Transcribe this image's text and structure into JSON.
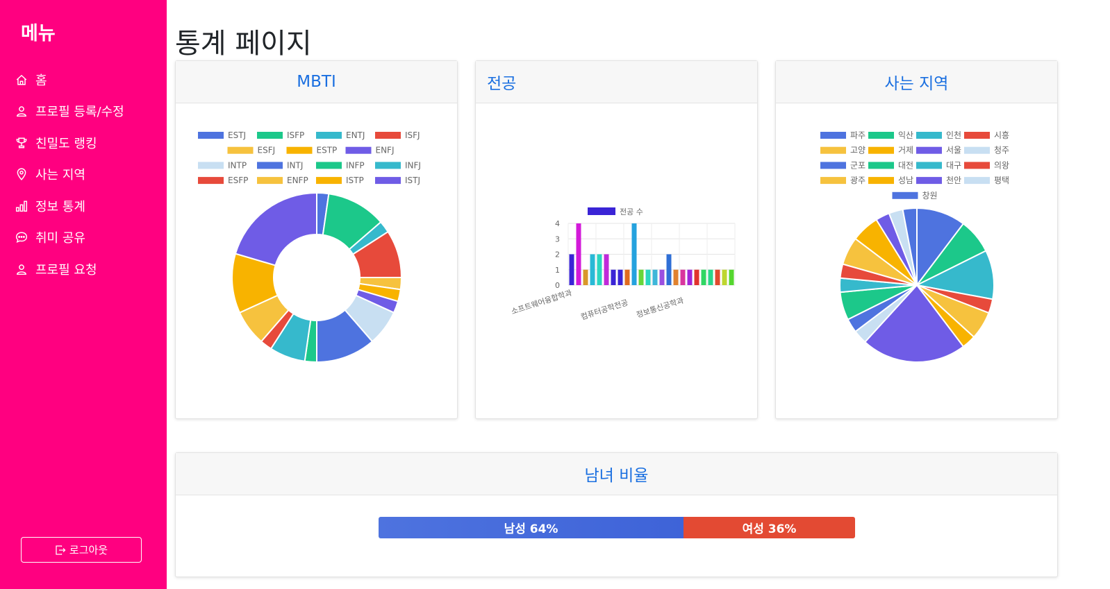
{
  "sidebar": {
    "title": "메뉴",
    "items": [
      {
        "label": "홈",
        "icon": "home-icon"
      },
      {
        "label": "프로필 등록/수정",
        "icon": "person-icon"
      },
      {
        "label": "친밀도 랭킹",
        "icon": "trophy-icon"
      },
      {
        "label": "사는 지역",
        "icon": "location-pin-icon"
      },
      {
        "label": "정보 통계",
        "icon": "bar-chart-icon"
      },
      {
        "label": "취미 공유",
        "icon": "chat-icon"
      },
      {
        "label": "프로필 요청",
        "icon": "person-icon"
      }
    ],
    "logout_label": "로그아웃"
  },
  "page_title": "통계 페이지",
  "cards": {
    "mbti_title": "MBTI",
    "major_title": "전공",
    "region_title": "사는 지역",
    "gender_title": "남녀 비율"
  },
  "gender": {
    "male_label": "남성 64%",
    "female_label": "여성 36%",
    "male_ratio": 0.64,
    "female_ratio": 0.36,
    "male_color": "#3e63d8",
    "female_color": "#e34a33"
  },
  "chart_data": [
    {
      "type": "doughnut",
      "title": "MBTI",
      "legend_position": "top",
      "labels": [
        "ESTJ",
        "ISFP",
        "ENTJ",
        "ISFJ",
        "ESFJ",
        "ESTP",
        "ENFJ",
        "INTP",
        "INTJ",
        "INFP",
        "INFJ",
        "ESFP",
        "ENFP",
        "ISTP",
        "ISTJ"
      ],
      "values": [
        1,
        5,
        1,
        4,
        1,
        1,
        1,
        3,
        5,
        1,
        3,
        1,
        3,
        5,
        9
      ],
      "colors": [
        "#4e73df",
        "#1cc88a",
        "#36b9cc",
        "#e74a3b",
        "#f6c23e",
        "#f8b300",
        "#6f5ce6",
        "#c8dff2",
        "#4e73df",
        "#1cc88a",
        "#36b9cc",
        "#e74a3b",
        "#f6c23e",
        "#f8b300",
        "#6f5ce6"
      ]
    },
    {
      "type": "bar",
      "title": "전공",
      "series_name": "전공 수",
      "legend_color": "#3a24d6",
      "x_tick_labels": [
        "소프트웨어융합학과",
        "컴퓨터공학전공",
        "정보통신공학과"
      ],
      "ylim": [
        0,
        4
      ],
      "y_ticks": [
        0,
        1,
        2,
        3,
        4
      ],
      "values": [
        2,
        4,
        1,
        2,
        2,
        2,
        1,
        1,
        1,
        4,
        1,
        1,
        1,
        1,
        2,
        1,
        1,
        1,
        1,
        1,
        1,
        1,
        1,
        1
      ],
      "colors": [
        "#3a24d6",
        "#d31ad9",
        "#d9972a",
        "#28b9d6",
        "#2bd6c0",
        "#c02ad9",
        "#3a24d6",
        "#3a24d6",
        "#e06b1f",
        "#25a2de",
        "#67d63a",
        "#2bd6c0",
        "#3fb6d9",
        "#9b4fe0",
        "#2f6fd6",
        "#e0822f",
        "#d9369e",
        "#a026d9",
        "#e0332f",
        "#2fd663",
        "#29d68a",
        "#e04a2f",
        "#bed62f",
        "#55d62f"
      ]
    },
    {
      "type": "pie",
      "title": "사는 지역",
      "legend_position": "top",
      "labels": [
        "파주",
        "익산",
        "인천",
        "시흥",
        "고양",
        "거제",
        "서울",
        "청주",
        "군포",
        "대전",
        "대구",
        "의왕",
        "광주",
        "성남",
        "천안",
        "평택",
        "창원"
      ],
      "values": [
        7,
        5,
        7,
        2,
        4,
        2,
        15,
        2,
        2,
        4,
        2,
        2,
        4,
        4,
        2,
        2,
        2
      ],
      "colors": [
        "#4e73df",
        "#1cc88a",
        "#36b9cc",
        "#e74a3b",
        "#f6c23e",
        "#f8b300",
        "#6f5ce6",
        "#c8dff2",
        "#4e73df",
        "#1cc88a",
        "#36b9cc",
        "#e74a3b",
        "#f6c23e",
        "#f8b300",
        "#6f5ce6",
        "#c8dff2",
        "#4e73df"
      ]
    }
  ]
}
